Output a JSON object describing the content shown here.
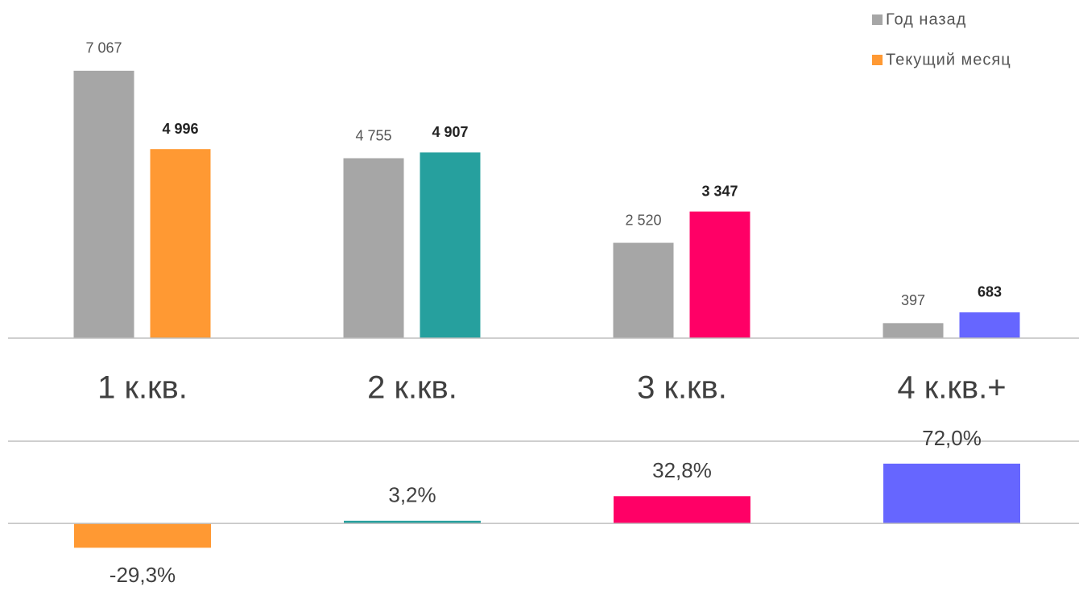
{
  "chart_data": [
    {
      "type": "bar",
      "categories": [
        "1 к.кв.",
        "2 к.кв.",
        "3 к.кв.",
        "4 к.кв.+"
      ],
      "ylim": [
        0,
        8000
      ],
      "legend": "top-right",
      "series": [
        {
          "name": "Год назад",
          "color": "#a6a6a6",
          "values": [
            7067,
            4755,
            2520,
            397
          ],
          "value_labels": [
            "7 067",
            "4 755",
            "2 520",
            "397"
          ]
        },
        {
          "name": "Текущий месяц",
          "color": "#ff9933",
          "colors": [
            "#ff9933",
            "#26a09e",
            "#ff0066",
            "#6666ff"
          ],
          "values": [
            4996,
            4907,
            3347,
            683
          ],
          "value_labels": [
            "4 996",
            "4 907",
            "3 347",
            "683"
          ]
        }
      ]
    },
    {
      "type": "bar",
      "ylim": [
        -60,
        100
      ],
      "colors": [
        "#ff9933",
        "#26a09e",
        "#ff0066",
        "#6666ff"
      ],
      "values": [
        -29.3,
        3.2,
        32.8,
        72.0
      ],
      "value_labels": [
        "-29,3%",
        "3,2%",
        "32,8%",
        "72,0%"
      ]
    }
  ]
}
